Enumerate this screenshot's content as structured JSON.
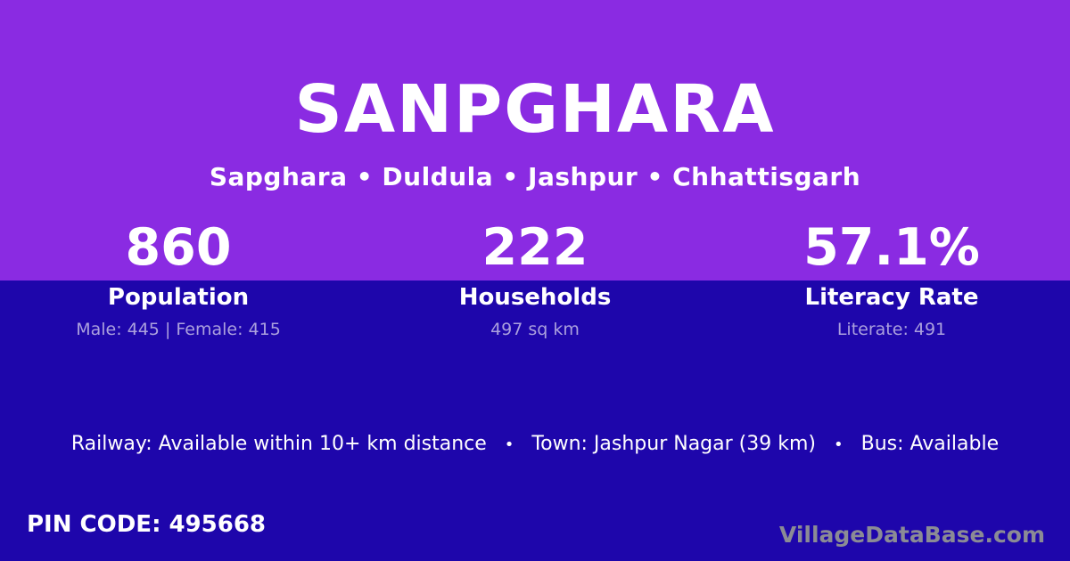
{
  "theme": {
    "top_background": "#8A2BE2",
    "bottom_background": "#1E06AB",
    "text_primary": "#FFFFFF",
    "text_muted": "#ABA0DE",
    "watermark_color": "#8B8B95"
  },
  "header": {
    "title": "SANPGHARA",
    "breadcrumb": "Sapghara • Duldula • Jashpur • Chhattisgarh"
  },
  "stats": [
    {
      "value": "860",
      "label": "Population",
      "sub": "Male: 445 | Female: 415"
    },
    {
      "value": "222",
      "label": "Households",
      "sub": "497 sq km"
    },
    {
      "value": "57.1%",
      "label": "Literacy Rate",
      "sub": "Literate: 491"
    }
  ],
  "transport": {
    "railway": "Railway: Available within 10+ km distance",
    "separator": "•",
    "town": "Town: Jashpur Nagar (39 km)",
    "bus": "Bus: Available"
  },
  "pin": {
    "label": "PIN CODE:",
    "value": "495668"
  },
  "watermark": {
    "text": "VillageDataBase.com"
  }
}
